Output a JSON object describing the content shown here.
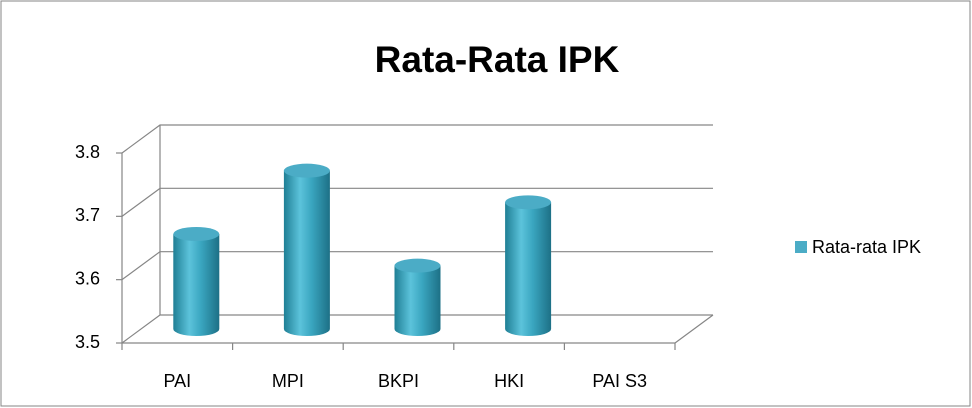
{
  "chart_data": {
    "type": "bar",
    "title": "Rata-Rata IPK",
    "categories": [
      "PAI",
      "MPI",
      "BKPI",
      "HKI",
      "PAI S3"
    ],
    "series": [
      {
        "name": "Rata-rata IPK",
        "color": "#4bacc6",
        "values": [
          3.65,
          3.75,
          3.6,
          3.7,
          null
        ]
      }
    ],
    "ylim": [
      3.5,
      3.8
    ],
    "yticks": [
      3.5,
      3.6,
      3.7,
      3.8
    ],
    "grid": true,
    "legend": "right"
  }
}
